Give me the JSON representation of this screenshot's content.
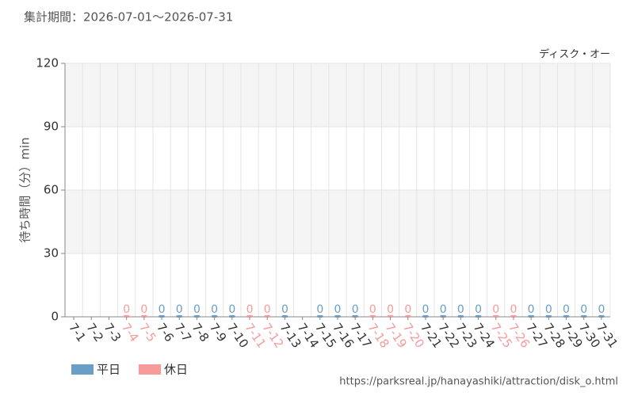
{
  "chart_data": {
    "type": "bar",
    "title": "集計期間：2026-07-01～2026-07-31",
    "subtitle": "ディスク・オー",
    "y_label": "待ち時間（分）min",
    "source": "https://parksreal.jp/hanayashiki/attraction/disk_o.html",
    "categories": [
      "7-1",
      "7-2",
      "7-3",
      "7-4",
      "7-5",
      "7-6",
      "7-7",
      "7-8",
      "7-9",
      "7-10",
      "7-11",
      "7-12",
      "7-13",
      "7-14",
      "7-15",
      "7-16",
      "7-17",
      "7-18",
      "7-19",
      "7-20",
      "7-21",
      "7-22",
      "7-23",
      "7-24",
      "7-25",
      "7-26",
      "7-27",
      "7-28",
      "7-29",
      "7-30",
      "7-31"
    ],
    "series": [
      {
        "name": "平日",
        "color": "#6a9ec6",
        "values": [
          null,
          null,
          null,
          null,
          null,
          0,
          0,
          0,
          0,
          0,
          null,
          null,
          0,
          null,
          0,
          0,
          0,
          null,
          null,
          null,
          0,
          0,
          0,
          0,
          null,
          null,
          0,
          0,
          0,
          0,
          0
        ]
      },
      {
        "name": "休日",
        "color": "#f79a9a",
        "values": [
          null,
          null,
          null,
          0,
          0,
          null,
          null,
          null,
          null,
          null,
          0,
          0,
          null,
          null,
          null,
          null,
          null,
          0,
          0,
          0,
          null,
          null,
          null,
          null,
          0,
          0,
          null,
          null,
          null,
          null,
          null
        ]
      }
    ],
    "ylim": [
      0,
      120
    ],
    "yticks": [
      0,
      30,
      60,
      90,
      120
    ],
    "grid": true
  }
}
